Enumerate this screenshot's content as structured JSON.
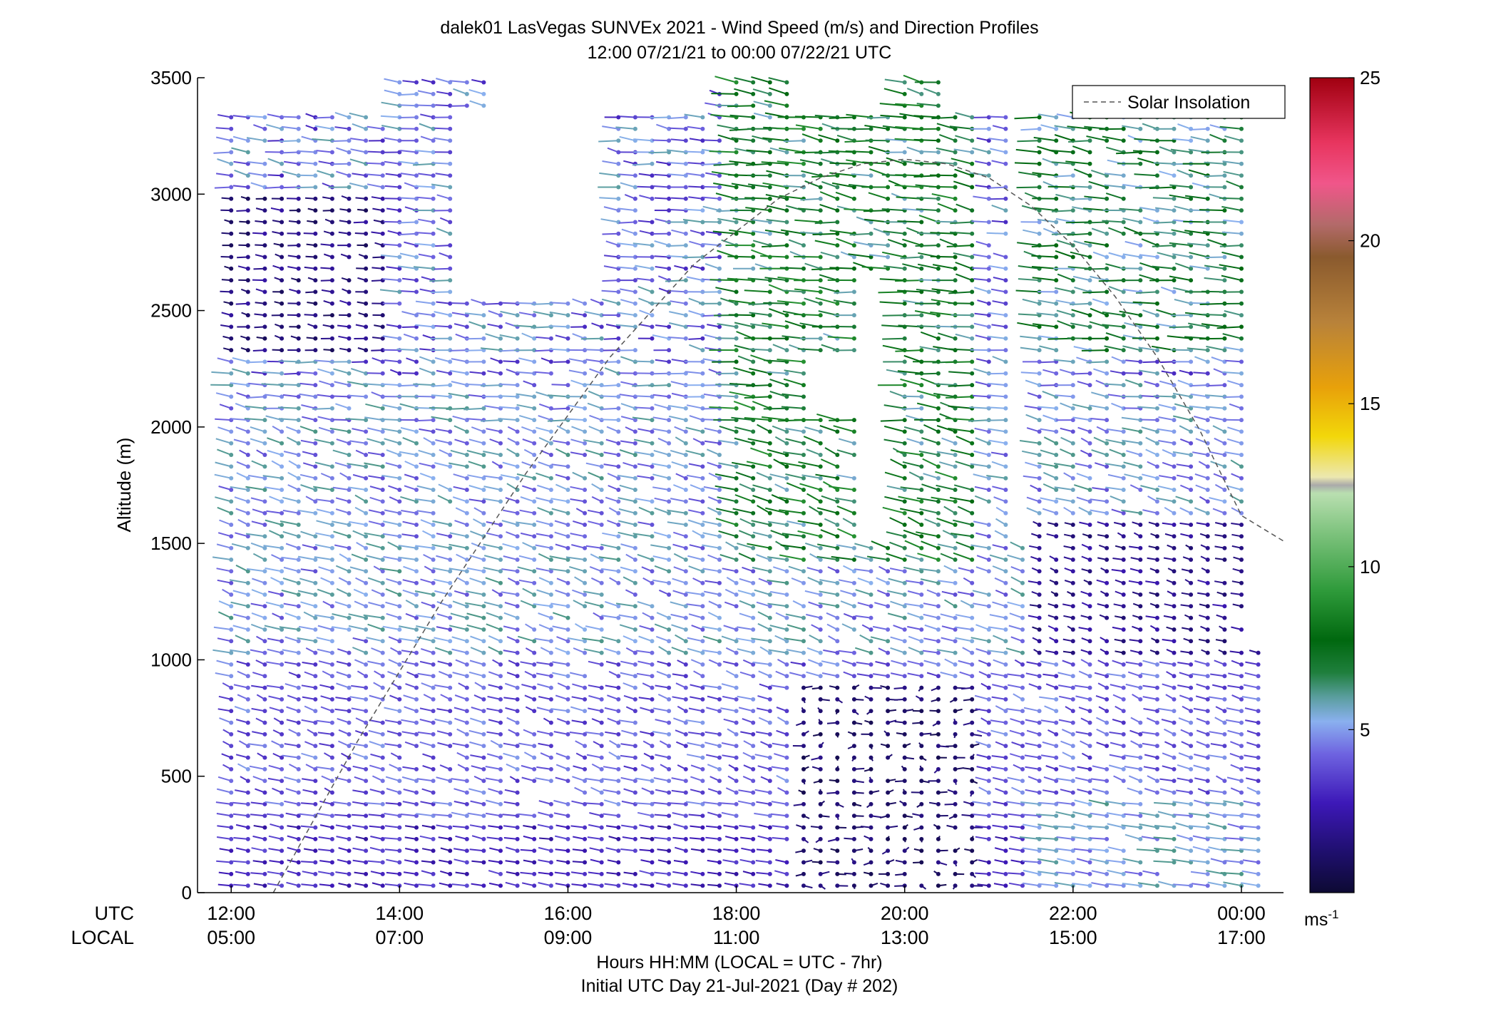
{
  "chart_data": {
    "type": "wind-profile",
    "title": "dalek01 LasVegas SUNVEx 2021 - Wind Speed (m/s) and Direction Profiles",
    "subtitle": "12:00 07/21/21 to 00:00 07/22/21  UTC",
    "ylabel": "Altitude (m)",
    "ylim": [
      0,
      3500
    ],
    "yticks": [
      "0",
      "500",
      "1000",
      "1500",
      "2000",
      "2500",
      "3000",
      "3500"
    ],
    "xlim_hours_utc": [
      11.6,
      24.5
    ],
    "xtick_hours": [
      12,
      14,
      16,
      18,
      20,
      22,
      24
    ],
    "x_row_labels": [
      "UTC",
      "LOCAL"
    ],
    "xticks_utc": [
      "12:00",
      "14:00",
      "16:00",
      "18:00",
      "20:00",
      "22:00",
      "00:00"
    ],
    "xticks_local": [
      "05:00",
      "07:00",
      "09:00",
      "11:00",
      "13:00",
      "15:00",
      "17:00"
    ],
    "xlabel_line1": "Hours HH:MM  (LOCAL = UTC - 7hr)",
    "xlabel_line2": "Initial UTC Day 21-Jul-2021 (Day # 202)",
    "legend": {
      "label": "Solar Insolation",
      "placement": "top-right"
    },
    "colorbar": {
      "range": [
        0,
        25
      ],
      "ticks": [
        "5",
        "10",
        "15",
        "20",
        "25"
      ],
      "unit": "ms",
      "unit_exponent": "-1"
    },
    "grid": false,
    "solar_insolation": {
      "x": [
        12.5,
        13.5,
        14.5,
        15.5,
        16.5,
        17.5,
        18.5,
        19.0,
        19.5,
        20.0,
        20.5,
        21.0,
        21.5,
        22.0,
        22.5,
        23.0,
        23.5,
        24.0,
        24.5
      ],
      "y": [
        0,
        650,
        1250,
        1800,
        2300,
        2700,
        2980,
        3070,
        3130,
        3150,
        3130,
        3070,
        2950,
        2780,
        2560,
        2300,
        1990,
        1620,
        1510
      ]
    },
    "profile_hours": [
      12.0,
      12.2,
      12.4,
      12.6,
      12.8,
      13.0,
      13.2,
      13.4,
      13.6,
      13.8,
      14.0,
      14.2,
      14.4,
      14.6,
      14.8,
      15.0,
      15.2,
      15.4,
      15.6,
      15.8,
      16.0,
      16.2,
      16.4,
      16.6,
      16.8,
      17.0,
      17.2,
      17.4,
      17.6,
      17.8,
      18.0,
      18.2,
      18.4,
      18.6,
      18.8,
      19.0,
      19.2,
      19.4,
      19.6,
      19.8,
      20.0,
      20.2,
      20.4,
      20.6,
      20.8,
      21.0,
      21.2,
      21.4,
      21.6,
      21.8,
      22.0,
      22.2,
      22.4,
      22.6,
      22.8,
      23.0,
      23.2,
      23.4,
      23.6,
      23.8,
      24.0,
      24.2
    ]
  }
}
